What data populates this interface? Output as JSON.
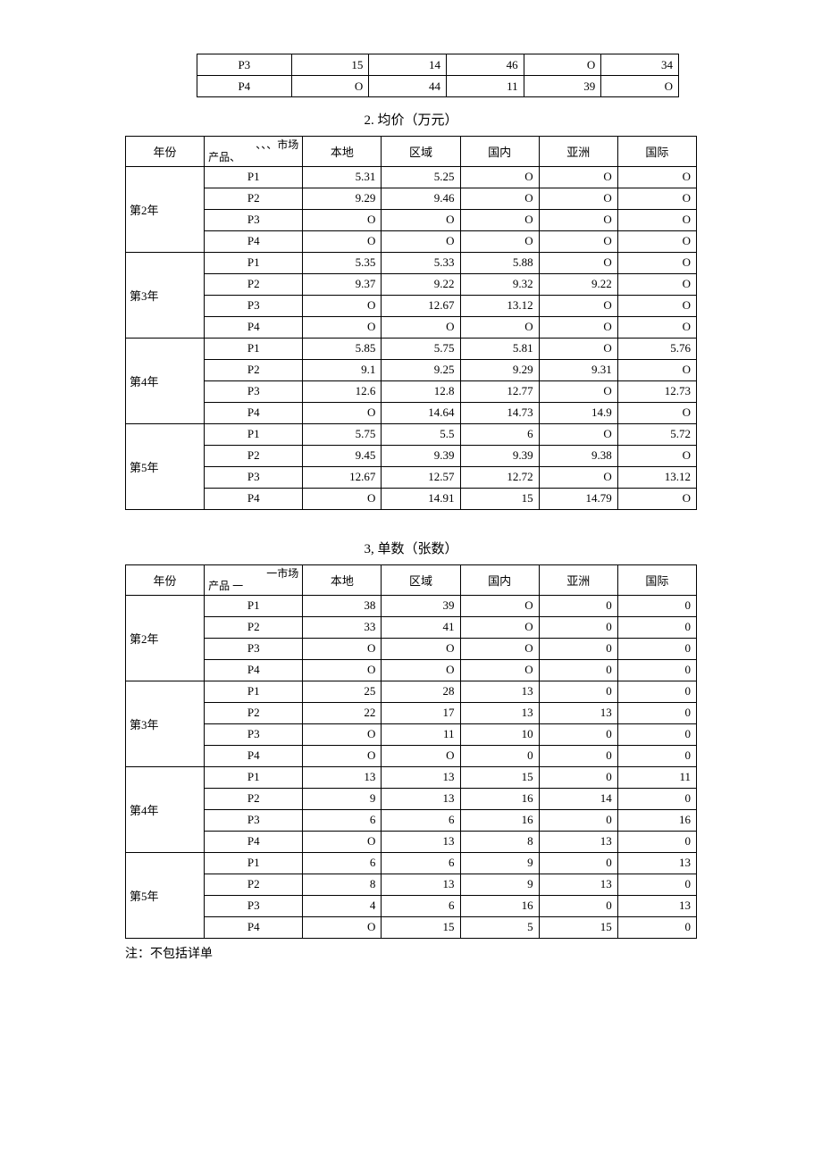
{
  "top_rows": [
    {
      "label": "P3",
      "cells": [
        "15",
        "14",
        "46",
        "O",
        "34"
      ]
    },
    {
      "label": "P4",
      "cells": [
        "O",
        "44",
        "11",
        "39",
        "O"
      ]
    }
  ],
  "table2": {
    "caption": "2. 均价（万元）",
    "year_header": "年份",
    "diag_top": "、、、市场",
    "diag_bot": "产品、",
    "columns": [
      "本地",
      "区域",
      "国内",
      "亚洲",
      "国际"
    ],
    "groups": [
      {
        "year": "第2年",
        "rows": [
          {
            "p": "P1",
            "v": [
              "5.31",
              "5.25",
              "O",
              "O",
              "O"
            ]
          },
          {
            "p": "P2",
            "v": [
              "9.29",
              "9.46",
              "O",
              "O",
              "O"
            ]
          },
          {
            "p": "P3",
            "v": [
              "O",
              "O",
              "O",
              "O",
              "O"
            ]
          },
          {
            "p": "P4",
            "v": [
              "O",
              "O",
              "O",
              "O",
              "O"
            ]
          }
        ]
      },
      {
        "year": "第3年",
        "rows": [
          {
            "p": "P1",
            "v": [
              "5.35",
              "5.33",
              "5.88",
              "O",
              "O"
            ]
          },
          {
            "p": "P2",
            "v": [
              "9.37",
              "9.22",
              "9.32",
              "9.22",
              "O"
            ]
          },
          {
            "p": "P3",
            "v": [
              "O",
              "12.67",
              "13.12",
              "O",
              "O"
            ]
          },
          {
            "p": "P4",
            "v": [
              "O",
              "O",
              "O",
              "O",
              "O"
            ]
          }
        ]
      },
      {
        "year": "第4年",
        "rows": [
          {
            "p": "P1",
            "v": [
              "5.85",
              "5.75",
              "5.81",
              "O",
              "5.76"
            ]
          },
          {
            "p": "P2",
            "v": [
              "9.1",
              "9.25",
              "9.29",
              "9.31",
              "O"
            ]
          },
          {
            "p": "P3",
            "v": [
              "12.6",
              "12.8",
              "12.77",
              "O",
              "12.73"
            ]
          },
          {
            "p": "P4",
            "v": [
              "O",
              "14.64",
              "14.73",
              "14.9",
              "O"
            ]
          }
        ]
      },
      {
        "year": "第5年",
        "rows": [
          {
            "p": "P1",
            "v": [
              "5.75",
              "5.5",
              "6",
              "O",
              "5.72"
            ]
          },
          {
            "p": "P2",
            "v": [
              "9.45",
              "9.39",
              "9.39",
              "9.38",
              "O"
            ]
          },
          {
            "p": "P3",
            "v": [
              "12.67",
              "12.57",
              "12.72",
              "O",
              "13.12"
            ]
          },
          {
            "p": "P4",
            "v": [
              "O",
              "14.91",
              "15",
              "14.79",
              "O"
            ]
          }
        ]
      }
    ]
  },
  "table3": {
    "caption": "3, 单数（张数）",
    "year_header": "年份",
    "diag_top": "一市场",
    "diag_bot": "产品   一",
    "columns": [
      "本地",
      "区域",
      "国内",
      "亚洲",
      "国际"
    ],
    "groups": [
      {
        "year": "第2年",
        "rows": [
          {
            "p": "P1",
            "v": [
              "38",
              "39",
              "O",
              "0",
              "0"
            ]
          },
          {
            "p": "P2",
            "v": [
              "33",
              "41",
              "O",
              "0",
              "0"
            ]
          },
          {
            "p": "P3",
            "v": [
              "O",
              "O",
              "O",
              "0",
              "0"
            ]
          },
          {
            "p": "P4",
            "v": [
              "O",
              "O",
              "O",
              "0",
              "0"
            ]
          }
        ]
      },
      {
        "year": "第3年",
        "rows": [
          {
            "p": "P1",
            "v": [
              "25",
              "28",
              "13",
              "0",
              "0"
            ]
          },
          {
            "p": "P2",
            "v": [
              "22",
              "17",
              "13",
              "13",
              "0"
            ]
          },
          {
            "p": "P3",
            "v": [
              "O",
              "11",
              "10",
              "0",
              "0"
            ]
          },
          {
            "p": "P4",
            "v": [
              "O",
              "O",
              "0",
              "0",
              "0"
            ]
          }
        ]
      },
      {
        "year": "第4年",
        "rows": [
          {
            "p": "P1",
            "v": [
              "13",
              "13",
              "15",
              "0",
              "11"
            ]
          },
          {
            "p": "P2",
            "v": [
              "9",
              "13",
              "16",
              "14",
              "0"
            ]
          },
          {
            "p": "P3",
            "v": [
              "6",
              "6",
              "16",
              "0",
              "16"
            ]
          },
          {
            "p": "P4",
            "v": [
              "O",
              "13",
              "8",
              "13",
              "0"
            ]
          }
        ]
      },
      {
        "year": "第5年",
        "rows": [
          {
            "p": "P1",
            "v": [
              "6",
              "6",
              "9",
              "0",
              "13"
            ]
          },
          {
            "p": "P2",
            "v": [
              "8",
              "13",
              "9",
              "13",
              "0"
            ]
          },
          {
            "p": "P3",
            "v": [
              "4",
              "6",
              "16",
              "0",
              "13"
            ]
          },
          {
            "p": "P4",
            "v": [
              "O",
              "15",
              "5",
              "15",
              "0"
            ]
          }
        ]
      }
    ]
  },
  "note": "注：不包括详单"
}
